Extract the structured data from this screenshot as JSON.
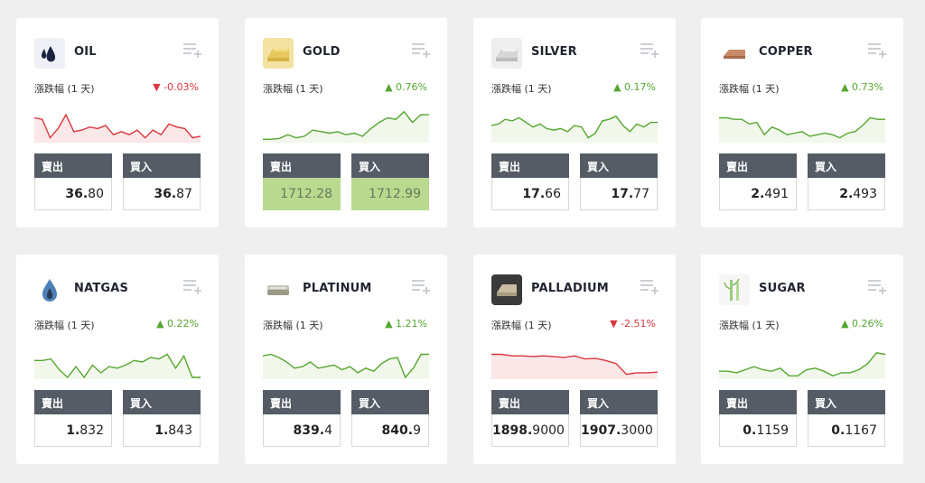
{
  "change_label": "漲跌幅 (1 天)",
  "sell_label": "賣出",
  "buy_label": "買入",
  "colors": {
    "up": "#55a630",
    "down": "#d9363e",
    "button": "#555c66",
    "highlight": "#b9d98f"
  },
  "cards": [
    {
      "id": "oil",
      "name": "OIL",
      "icon": "oil-drops-icon",
      "change": "▼ -0.03%",
      "direction": "down",
      "sell": {
        "main": "36.",
        "tail": "80"
      },
      "buy": {
        "main": "36.",
        "tail": "87"
      },
      "spark": [
        0.75,
        0.7,
        0.1,
        0.4,
        0.85,
        0.3,
        0.35,
        0.45,
        0.4,
        0.5,
        0.2,
        0.3,
        0.2,
        0.35,
        0.1,
        0.35,
        0.2,
        0.55,
        0.45,
        0.4,
        0.1,
        0.15
      ]
    },
    {
      "id": "gold",
      "name": "GOLD",
      "icon": "gold-bar-icon",
      "change": "▲ 0.76%",
      "direction": "up",
      "highlight": true,
      "sell": {
        "main": "",
        "tail": "1712.28"
      },
      "buy": {
        "main": "",
        "tail": "1712.99"
      },
      "spark": [
        0.05,
        0.05,
        0.08,
        0.2,
        0.1,
        0.15,
        0.35,
        0.3,
        0.25,
        0.3,
        0.2,
        0.25,
        0.15,
        0.4,
        0.6,
        0.75,
        0.7,
        0.95,
        0.6,
        0.85,
        0.85
      ]
    },
    {
      "id": "silver",
      "name": "SILVER",
      "icon": "silver-bar-icon",
      "change": "▲ 0.17%",
      "direction": "up",
      "sell": {
        "main": "17.",
        "tail": "66"
      },
      "buy": {
        "main": "17.",
        "tail": "77"
      },
      "spark": [
        0.5,
        0.55,
        0.7,
        0.65,
        0.75,
        0.6,
        0.45,
        0.55,
        0.4,
        0.35,
        0.4,
        0.3,
        0.5,
        0.45,
        0.1,
        0.25,
        0.65,
        0.7,
        0.8,
        0.5,
        0.3,
        0.55,
        0.45,
        0.6,
        0.6
      ]
    },
    {
      "id": "copper",
      "name": "COPPER",
      "icon": "copper-bar-icon",
      "change": "▲ 0.73%",
      "direction": "up",
      "sell": {
        "main": "2.",
        "tail": "491"
      },
      "buy": {
        "main": "2.",
        "tail": "493"
      },
      "spark": [
        0.75,
        0.75,
        0.7,
        0.7,
        0.55,
        0.6,
        0.2,
        0.45,
        0.35,
        0.2,
        0.25,
        0.3,
        0.15,
        0.2,
        0.25,
        0.2,
        0.1,
        0.25,
        0.3,
        0.5,
        0.75,
        0.7,
        0.7
      ]
    },
    {
      "id": "natgas",
      "name": "NATGAS",
      "icon": "gas-flame-icon",
      "change": "▲ 0.22%",
      "direction": "up",
      "sell": {
        "main": "1.",
        "tail": "832"
      },
      "buy": {
        "main": "1.",
        "tail": "843"
      },
      "spark": [
        0.55,
        0.55,
        0.6,
        0.25,
        0.0,
        0.35,
        0.0,
        0.4,
        0.15,
        0.35,
        0.3,
        0.4,
        0.55,
        0.5,
        0.65,
        0.6,
        0.75,
        0.3,
        0.7,
        0.0,
        0.0
      ]
    },
    {
      "id": "platinum",
      "name": "PLATINUM",
      "icon": "platinum-bar-icon",
      "change": "▲ 1.21%",
      "direction": "up",
      "sell": {
        "main": "839.",
        "tail": "4"
      },
      "buy": {
        "main": "840.",
        "tail": "9"
      },
      "spark": [
        0.7,
        0.75,
        0.65,
        0.5,
        0.3,
        0.35,
        0.5,
        0.3,
        0.35,
        0.4,
        0.25,
        0.35,
        0.15,
        0.3,
        0.2,
        0.45,
        0.6,
        0.65,
        0.0,
        0.3,
        0.75,
        0.75
      ]
    },
    {
      "id": "palladium",
      "name": "PALLADIUM",
      "icon": "palladium-bar-icon",
      "change": "▼ -2.51%",
      "direction": "down",
      "sell": {
        "main": "1898.",
        "tail": "9000"
      },
      "buy": {
        "main": "1907.",
        "tail": "3000"
      },
      "spark": [
        0.75,
        0.75,
        0.7,
        0.7,
        0.68,
        0.7,
        0.68,
        0.65,
        0.7,
        0.6,
        0.62,
        0.55,
        0.45,
        0.1,
        0.15,
        0.15,
        0.17
      ]
    },
    {
      "id": "sugar",
      "name": "SUGAR",
      "icon": "sugarcane-icon",
      "change": "▲ 0.26%",
      "direction": "up",
      "sell": {
        "main": "0.",
        "tail": "1159"
      },
      "buy": {
        "main": "0.",
        "tail": "1167"
      },
      "spark": [
        0.2,
        0.2,
        0.15,
        0.25,
        0.35,
        0.25,
        0.2,
        0.3,
        0.05,
        0.05,
        0.25,
        0.3,
        0.2,
        0.05,
        0.15,
        0.15,
        0.25,
        0.45,
        0.8,
        0.75
      ]
    }
  ]
}
